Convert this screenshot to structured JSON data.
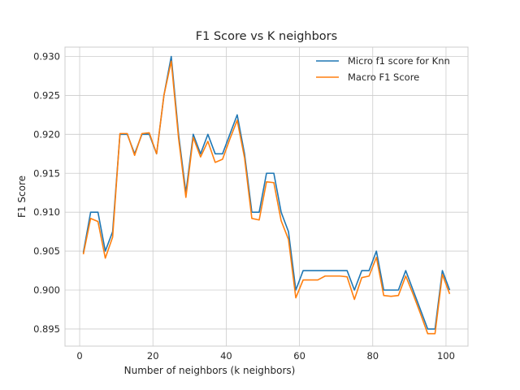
{
  "chart_data": {
    "type": "line",
    "title": "F1 Score vs K neighbors",
    "xlabel": "Number of neighbors (k neighbors)",
    "ylabel": "F1 Score",
    "xlim": [
      -4,
      106
    ],
    "ylim": [
      0.8928,
      0.9312
    ],
    "xticks": [
      0,
      20,
      40,
      60,
      80,
      100
    ],
    "yticks": [
      0.895,
      0.9,
      0.905,
      0.91,
      0.915,
      0.92,
      0.925,
      0.93
    ],
    "grid": true,
    "legend": "top-right",
    "x": [
      1,
      3,
      5,
      7,
      9,
      11,
      13,
      15,
      17,
      19,
      21,
      23,
      25,
      27,
      29,
      31,
      33,
      35,
      37,
      39,
      41,
      43,
      45,
      47,
      49,
      51,
      53,
      55,
      57,
      59,
      61,
      63,
      65,
      67,
      69,
      71,
      73,
      75,
      77,
      79,
      81,
      83,
      85,
      87,
      89,
      91,
      93,
      95,
      97,
      99,
      101
    ],
    "series": [
      {
        "name": "Micro f1 score for Knn",
        "color": "#1f77b4",
        "values": [
          0.9048,
          0.91,
          0.91,
          0.905,
          0.9075,
          0.92,
          0.92,
          0.9175,
          0.92,
          0.92,
          0.9175,
          0.925,
          0.93,
          0.92,
          0.9125,
          0.92,
          0.9175,
          0.92,
          0.9175,
          0.9175,
          0.92,
          0.9225,
          0.9175,
          0.91,
          0.91,
          0.915,
          0.915,
          0.91,
          0.9075,
          0.9,
          0.9025,
          0.9025,
          0.9025,
          0.9025,
          0.9025,
          0.9025,
          0.9025,
          0.9,
          0.9025,
          0.9025,
          0.905,
          0.9,
          0.9,
          0.9,
          0.9025,
          0.9,
          0.8975,
          0.895,
          0.895,
          0.9025,
          0.9
        ]
      },
      {
        "name": "Macro F1 Score",
        "color": "#ff7f0e",
        "values": [
          0.9046,
          0.9092,
          0.9088,
          0.9041,
          0.9068,
          0.9201,
          0.9201,
          0.9173,
          0.9201,
          0.9202,
          0.9175,
          0.925,
          0.9294,
          0.9195,
          0.9119,
          0.9196,
          0.9171,
          0.9191,
          0.9164,
          0.9168,
          0.9194,
          0.9218,
          0.917,
          0.9092,
          0.909,
          0.9139,
          0.9138,
          0.9089,
          0.9065,
          0.899,
          0.9013,
          0.9013,
          0.9013,
          0.9018,
          0.9018,
          0.9018,
          0.9017,
          0.8988,
          0.9016,
          0.9018,
          0.9042,
          0.8993,
          0.8992,
          0.8993,
          0.9018,
          0.8995,
          0.897,
          0.8944,
          0.8944,
          0.902,
          0.8995
        ]
      }
    ]
  }
}
